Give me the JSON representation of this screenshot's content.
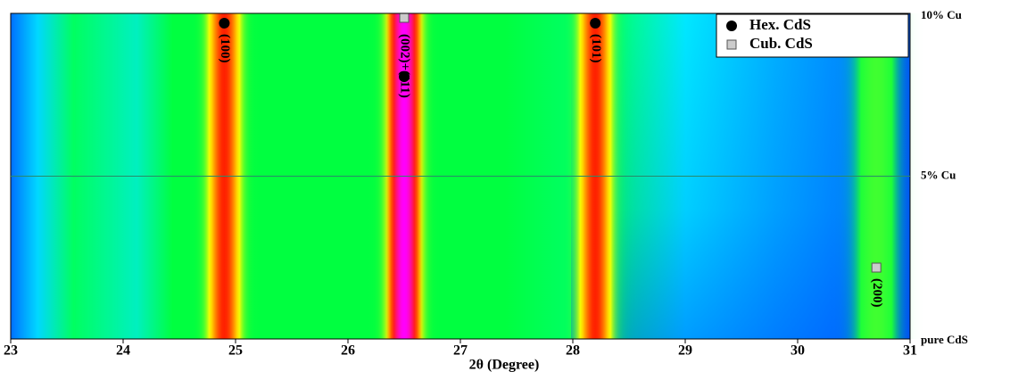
{
  "chart_data": {
    "type": "contour",
    "x_label": "2θ (Degree)",
    "xlim": [
      23,
      31
    ],
    "xticks": [
      23,
      24,
      25,
      26,
      27,
      28,
      29,
      30,
      31
    ],
    "categories": [
      "pure CdS",
      "5% Cu",
      "10% Cu"
    ],
    "colorscale": [
      "#0040ff",
      "#00e0ff",
      "#00ff40",
      "#ffff00",
      "#ff2000",
      "#ff00ff"
    ],
    "legend": [
      {
        "name": "Hex. CdS",
        "marker": "circle",
        "color": "#000000"
      },
      {
        "name": "Cub. CdS",
        "marker": "square",
        "color": "#cccccc"
      }
    ],
    "peaks": [
      {
        "label": "(100)",
        "x": 24.9,
        "intensity": 0.8,
        "series": [
          0
        ]
      },
      {
        "label": "(002)+(111)",
        "x": 26.5,
        "intensity": 1.0,
        "series": [
          0,
          1
        ]
      },
      {
        "label": "(101)",
        "x": 28.2,
        "intensity": 0.8,
        "series": [
          0
        ]
      },
      {
        "label": "(200)",
        "x": 30.7,
        "intensity": 0.45,
        "series": [
          1
        ]
      }
    ]
  }
}
